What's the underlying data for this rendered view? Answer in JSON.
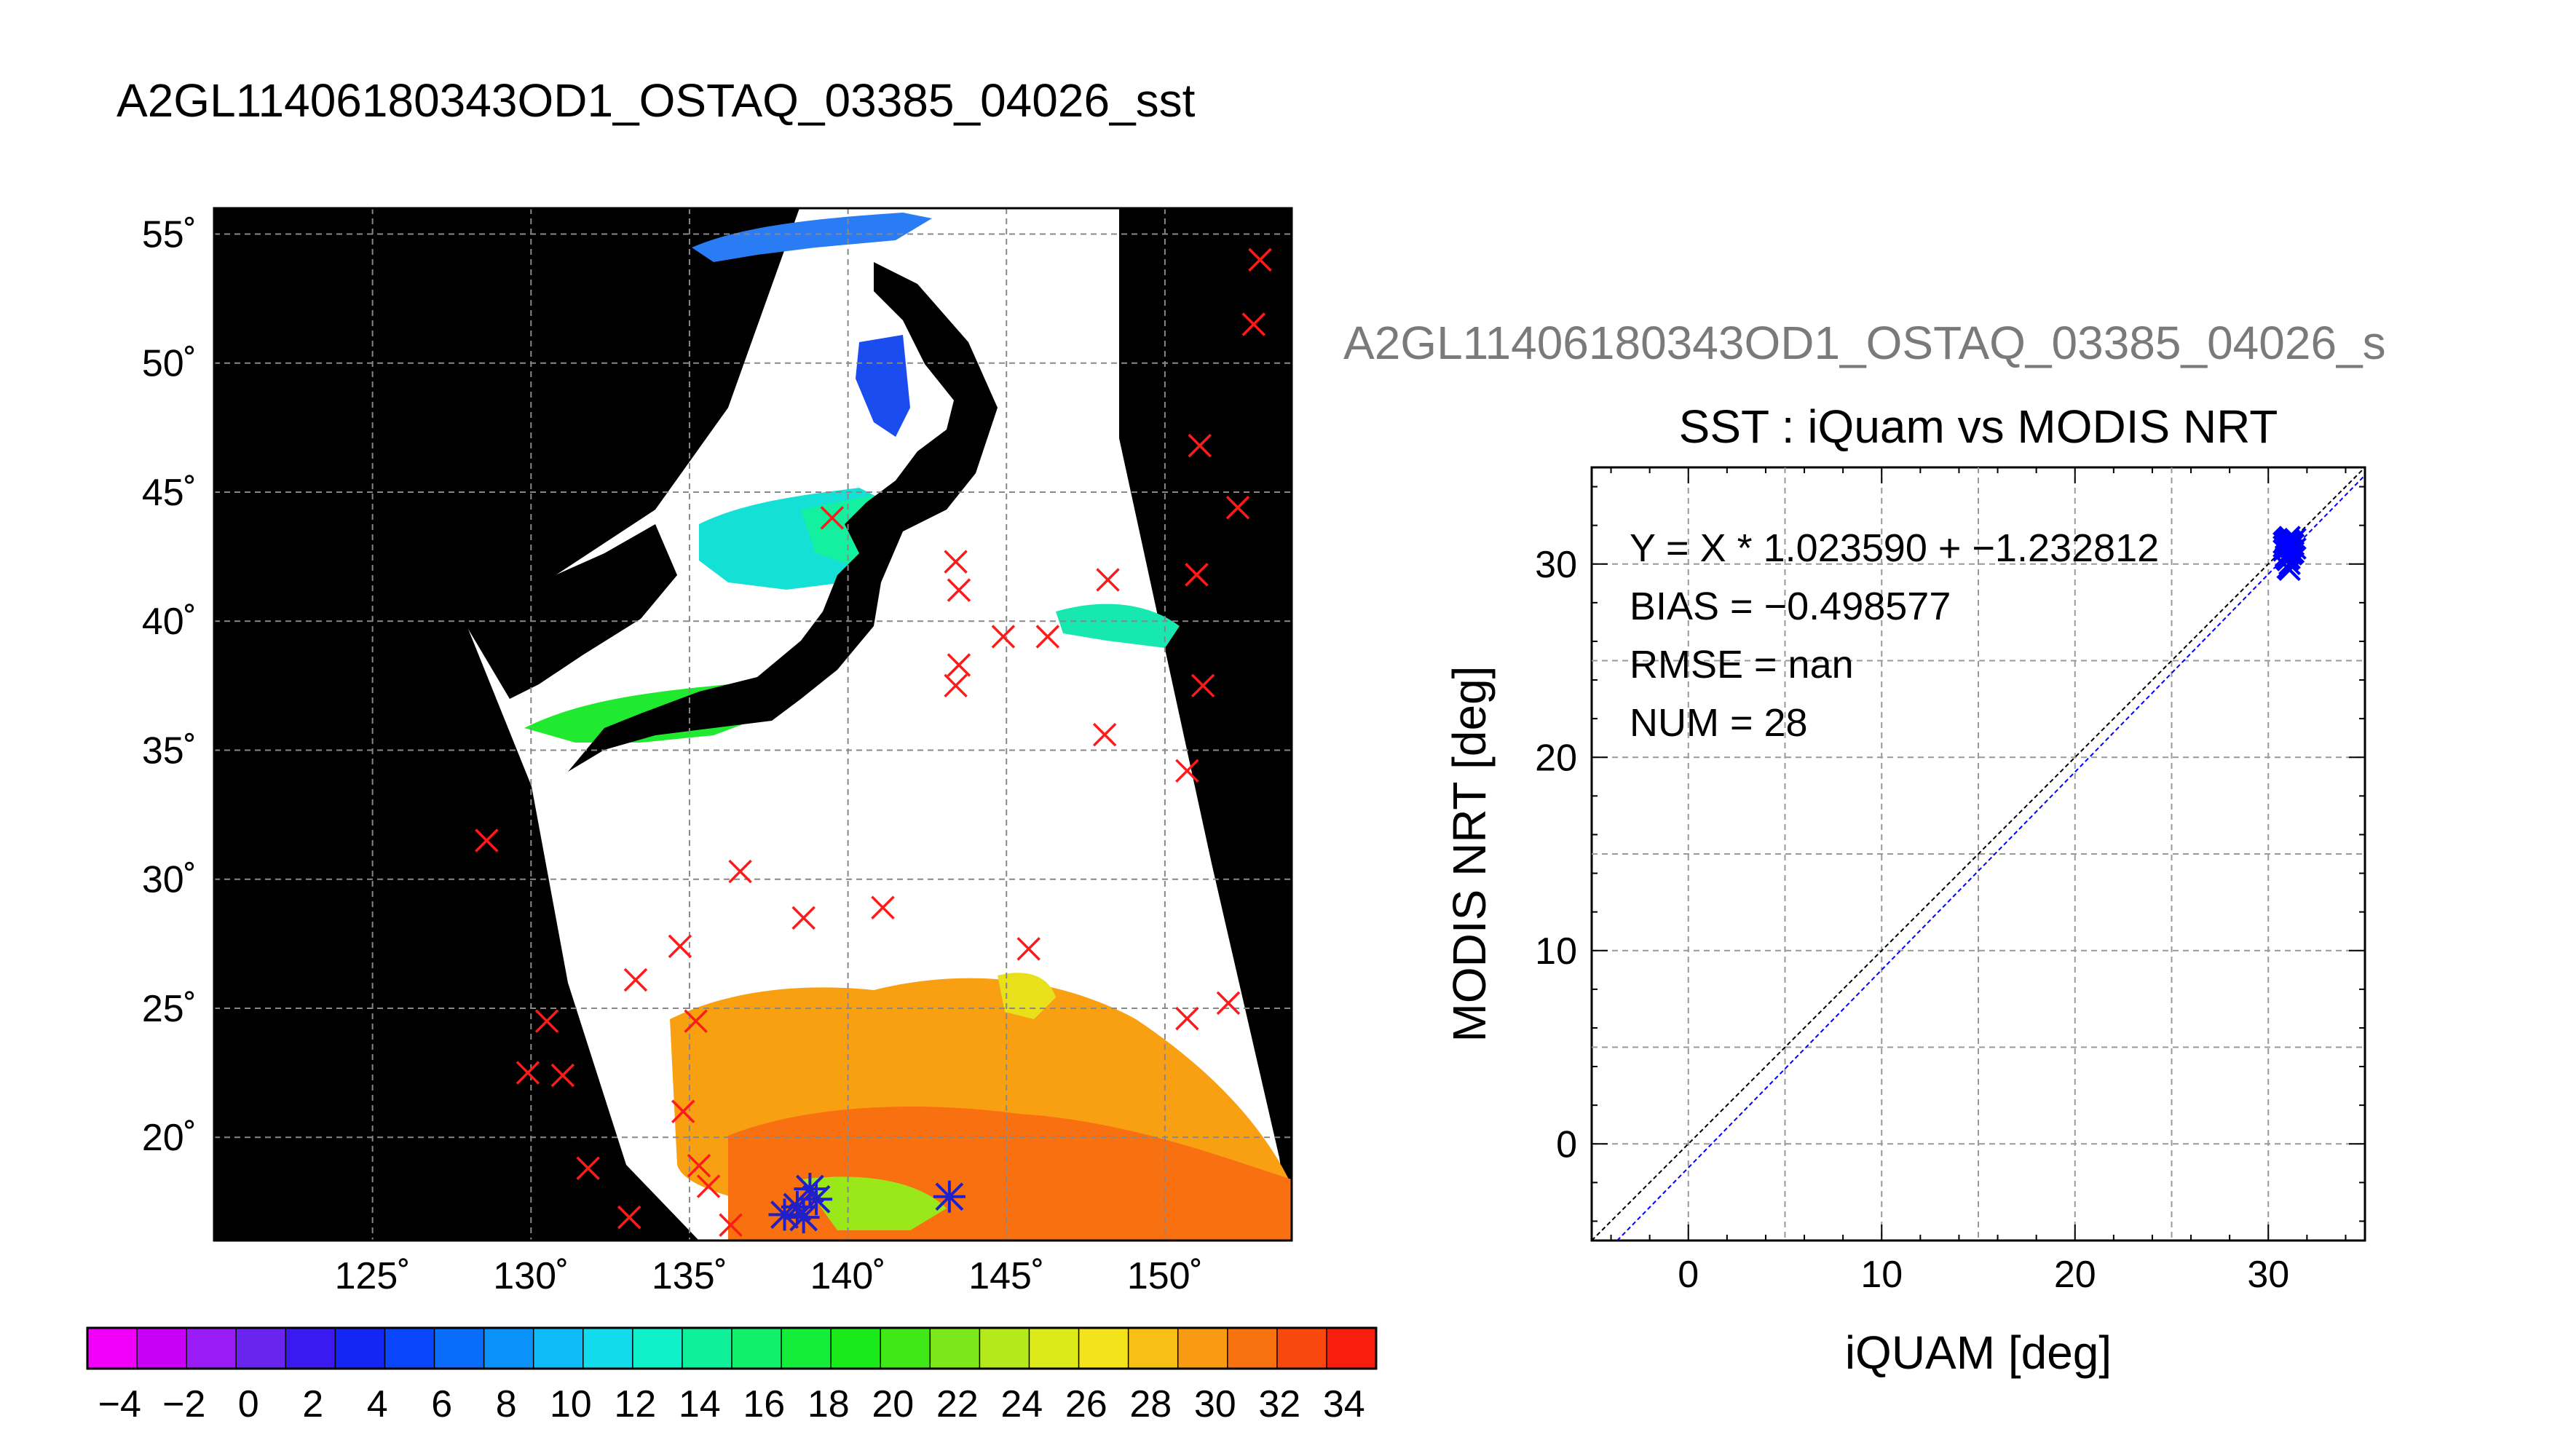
{
  "main_title": "A2GL11406180343OD1_OSTAQ_03385_04026_sst",
  "map": {
    "lon_ticks": [
      "125˚",
      "130˚",
      "135˚",
      "140˚",
      "145˚",
      "150˚"
    ],
    "lat_ticks": [
      "55˚",
      "50˚",
      "45˚",
      "40˚",
      "35˚",
      "30˚",
      "25˚",
      "20˚"
    ],
    "lon_range": [
      120,
      154
    ],
    "lat_range": [
      16,
      56
    ],
    "grid": true,
    "land_color": "#000000",
    "cloud_color": "#ffffff",
    "matchup_markers_red": [
      [
        153.0,
        54.0
      ],
      [
        152.8,
        51.5
      ],
      [
        151.1,
        46.8
      ],
      [
        152.3,
        44.4
      ],
      [
        151.0,
        41.8
      ],
      [
        151.2,
        37.5
      ],
      [
        150.7,
        34.2
      ],
      [
        148.2,
        41.6
      ],
      [
        148.1,
        35.6
      ],
      [
        146.3,
        39.4
      ],
      [
        144.9,
        39.4
      ],
      [
        143.5,
        41.2
      ],
      [
        143.4,
        42.3
      ],
      [
        143.5,
        38.3
      ],
      [
        143.4,
        37.5
      ],
      [
        139.5,
        44.0
      ],
      [
        150.7,
        24.6
      ],
      [
        152.0,
        25.2
      ],
      [
        145.7,
        27.3
      ],
      [
        141.1,
        28.9
      ],
      [
        138.6,
        28.5
      ],
      [
        136.6,
        30.3
      ],
      [
        128.6,
        31.5
      ],
      [
        134.7,
        27.4
      ],
      [
        133.3,
        26.1
      ],
      [
        135.2,
        24.5
      ],
      [
        130.5,
        24.5
      ],
      [
        129.9,
        22.5
      ],
      [
        131.0,
        22.4
      ],
      [
        134.8,
        21.0
      ],
      [
        131.8,
        18.8
      ],
      [
        135.3,
        18.9
      ],
      [
        135.6,
        18.1
      ],
      [
        133.1,
        16.9
      ],
      [
        136.3,
        16.6
      ]
    ],
    "matchup_markers_blue": [
      [
        138.8,
        18.0
      ],
      [
        138.4,
        17.3
      ],
      [
        138.0,
        17.0
      ],
      [
        139.0,
        17.6
      ],
      [
        138.6,
        16.9
      ],
      [
        143.2,
        17.7
      ]
    ]
  },
  "colorbar": {
    "tick_labels": [
      "−4",
      "−2",
      "0",
      "2",
      "4",
      "6",
      "8",
      "10",
      "12",
      "14",
      "16",
      "18",
      "20",
      "22",
      "24",
      "26",
      "28",
      "30",
      "32",
      "34"
    ],
    "min": -5,
    "max": 35,
    "step": 2,
    "colors": [
      "#f000f8",
      "#c800f8",
      "#9a1cf4",
      "#6a24f0",
      "#3a1af0",
      "#1426f4",
      "#0a46fa",
      "#0a6cfa",
      "#0a92f8",
      "#10bcf8",
      "#12dcec",
      "#0ef0c8",
      "#0ef09a",
      "#10f06a",
      "#14ee3a",
      "#1aea1a",
      "#40e818",
      "#7ae81a",
      "#b4ea1c",
      "#dcea1a",
      "#f4e21a",
      "#f8c014",
      "#f89a12",
      "#f87210",
      "#f8480e",
      "#f81e0e"
    ]
  },
  "scatter_subtitle": "A2GL11406180343OD1_OSTAQ_03385_04026_s",
  "chart_data": {
    "type": "scatter",
    "title": "SST : iQuam vs MODIS NRT",
    "xlabel": "iQUAM [deg]",
    "ylabel": "MODIS NRT [deg]",
    "xlim": [
      -5,
      35
    ],
    "ylim": [
      -5,
      35
    ],
    "x_ticks": [
      "0",
      "10",
      "20",
      "30"
    ],
    "y_ticks": [
      "0",
      "10",
      "20",
      "30"
    ],
    "grid": true,
    "annotations": [
      "Y = X * 1.023590 + −1.232812",
      "BIAS = −0.498577",
      "RMSE = nan",
      "NUM = 28"
    ],
    "regression": {
      "slope": 1.02359,
      "intercept": -1.232812
    },
    "reference_line": {
      "slope": 1,
      "intercept": 0
    },
    "series": [
      {
        "marker": "x",
        "color": "#0000ff",
        "x": [
          30.8,
          30.9,
          31.0,
          31.1,
          31.2,
          31.4,
          30.9,
          31.0,
          31.1,
          31.3,
          30.8,
          31.0,
          31.2,
          31.1,
          30.9,
          31.0,
          31.3,
          31.1,
          30.9,
          31.2,
          31.0,
          31.1,
          31.4,
          30.8,
          31.0,
          31.2,
          31.1,
          31.3
        ],
        "y": [
          30.7,
          31.0,
          30.5,
          31.2,
          30.9,
          31.3,
          30.3,
          30.8,
          31.4,
          30.6,
          31.1,
          30.2,
          30.7,
          30.0,
          31.2,
          29.8,
          31.0,
          30.6,
          30.4,
          31.1,
          30.9,
          30.3,
          30.8,
          30.9,
          31.3,
          30.5,
          29.7,
          31.2
        ]
      }
    ]
  }
}
